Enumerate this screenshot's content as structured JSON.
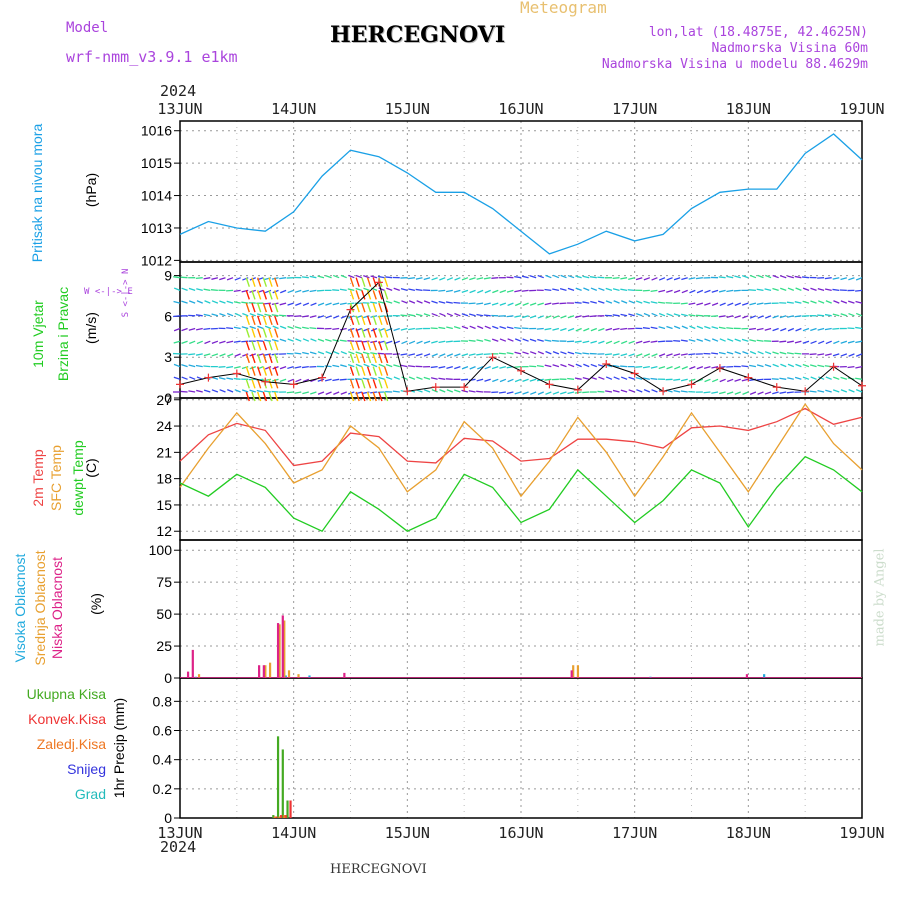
{
  "header": {
    "model_label": "Model",
    "model_name": "wrf-nmm_v3.9.1 e1km",
    "station": "HERCEGNOVI",
    "meteogram_label": "Meteogram",
    "coords": "lon,lat (18.4875E, 42.4625N)",
    "elevation": "Nadmorska Visina 60m",
    "model_elevation": "Nadmorska Visina u modelu 88.4629m",
    "year_top": "2024",
    "year_bottom": "2024",
    "footer_station": "HERCEGNOVI",
    "credit": "made by Angel"
  },
  "colors": {
    "pressure": "#1aa0e6",
    "temp2m": "#ee4444",
    "sfc_temp": "#e8a030",
    "dewpoint": "#22cc22",
    "high_cloud": "#22aadd",
    "mid_cloud": "#e8a030",
    "low_cloud": "#dd2288",
    "total_precip": "#44aa22",
    "conv_precip": "#ee3333",
    "frz_precip": "#ee7722",
    "snow": "#3333dd",
    "hail": "#22bbbb",
    "wind_label": "#22cc22",
    "compass": "#aa44dd",
    "meta": "#aa44dd",
    "meteogram": "#e8c070"
  },
  "panels": {
    "pressure": {
      "label1": "Pritisak na nivou mora",
      "unit": "(hPa)",
      "ticks": [
        "1016",
        "1015",
        "1014",
        "1013",
        "1012"
      ]
    },
    "wind": {
      "label1": "10m Vjetar",
      "label2": "Brzina i Pravac",
      "unit": "(m/s)",
      "ticks": [
        "9",
        "6",
        "3",
        "0"
      ],
      "compass": "W <-|-> E",
      "compass_v": "S <-|-> N"
    },
    "temp": {
      "label1": "2m Temp",
      "label2": "SFC Temp",
      "label3": "dewpt Temp",
      "unit": "(C)",
      "ticks": [
        "27",
        "24",
        "21",
        "18",
        "15",
        "12"
      ]
    },
    "cloud": {
      "label1": "Visoka Oblacnost",
      "label2": "Srednja Oblacnost",
      "label3": "Niska Oblacnost",
      "unit": "(%)",
      "ticks": [
        "100",
        "75",
        "50",
        "25",
        "0"
      ]
    },
    "precip": {
      "legend": [
        "Ukupna Kisa",
        "Konvek.Kisa",
        "Zaledj.Kisa",
        "Snijeg",
        "Grad"
      ],
      "unit": "1hr Precip (mm)",
      "ticks": [
        "0.8",
        "0.6",
        "0.4",
        "0.2",
        "0"
      ]
    }
  },
  "x_axis": {
    "dates": [
      "13JUN",
      "14JUN",
      "15JUN",
      "16JUN",
      "17JUN",
      "18JUN",
      "19JUN"
    ]
  },
  "chart_data": [
    {
      "type": "line",
      "name": "pressure",
      "x": [
        0,
        6,
        12,
        18,
        24,
        30,
        36,
        42,
        48,
        54,
        60,
        66,
        72,
        78,
        84,
        90,
        96,
        102,
        108,
        114,
        120,
        126,
        132,
        138,
        144
      ],
      "y_label": "(hPa)",
      "ylim": [
        1012,
        1016.3
      ],
      "series": [
        {
          "values": [
            1012.8,
            1013.2,
            1013.0,
            1012.9,
            1013.5,
            1014.6,
            1015.4,
            1015.2,
            1014.7,
            1014.1,
            1014.1,
            1013.6,
            1012.9,
            1012.2,
            1012.5,
            1012.9,
            1012.6,
            1012.8,
            1013.6,
            1014.1,
            1014.2,
            1014.2,
            1015.3,
            1015.9,
            1015.1
          ]
        }
      ]
    },
    {
      "type": "line",
      "name": "wind_speed",
      "x": [
        0,
        6,
        12,
        18,
        24,
        30,
        36,
        42,
        48,
        54,
        60,
        66,
        72,
        78,
        84,
        90,
        96,
        102,
        108,
        114,
        120,
        126,
        132,
        138,
        144
      ],
      "y_label": "(m/s)",
      "ylim": [
        0,
        10
      ],
      "series": [
        {
          "values": [
            1.0,
            1.5,
            1.8,
            1.2,
            1.0,
            1.5,
            6.5,
            8.5,
            0.5,
            0.8,
            0.8,
            3.0,
            2.0,
            1.0,
            0.6,
            2.5,
            1.8,
            0.5,
            1.0,
            2.2,
            1.5,
            0.8,
            0.5,
            2.3,
            0.9
          ]
        }
      ]
    },
    {
      "type": "line",
      "name": "temperature",
      "x": [
        0,
        6,
        12,
        18,
        24,
        30,
        36,
        42,
        48,
        54,
        60,
        66,
        72,
        78,
        84,
        90,
        96,
        102,
        108,
        114,
        120,
        126,
        132,
        138,
        144
      ],
      "y_label": "(C)",
      "ylim": [
        11,
        27
      ],
      "series": [
        {
          "name": "2m Temp",
          "values": [
            20.0,
            23.0,
            24.3,
            23.5,
            19.5,
            20.0,
            23.2,
            22.8,
            20.0,
            19.8,
            22.6,
            22.3,
            20.0,
            20.3,
            22.5,
            22.5,
            22.2,
            21.5,
            23.8,
            24.0,
            23.5,
            24.5,
            26.0,
            24.2,
            25.0
          ]
        },
        {
          "name": "SFC Temp",
          "values": [
            17.0,
            21.5,
            25.5,
            22.0,
            17.5,
            19.0,
            24.0,
            21.5,
            16.5,
            19.0,
            24.5,
            21.5,
            16.0,
            20.0,
            25.0,
            21.0,
            16.0,
            20.5,
            25.5,
            21.0,
            16.5,
            21.5,
            26.5,
            22.0,
            19.0
          ]
        },
        {
          "name": "dewpt Temp",
          "values": [
            17.5,
            16.0,
            18.5,
            17.0,
            13.5,
            12.0,
            16.5,
            14.5,
            12.0,
            13.5,
            18.5,
            17.0,
            13.0,
            14.5,
            19.0,
            16.0,
            13.0,
            15.5,
            19.0,
            17.5,
            12.5,
            17.0,
            20.5,
            19.0,
            16.5
          ]
        }
      ]
    },
    {
      "type": "bar",
      "name": "cloud_cover",
      "ylim": [
        0,
        105
      ],
      "y_label": "(%)",
      "series": [
        {
          "name": "Visoka Oblacnost",
          "hours": [
            3,
            22,
            27,
            99,
            123
          ],
          "values": [
            1,
            2,
            2,
            1,
            3
          ]
        },
        {
          "name": "Srednja Oblacnost",
          "hours": [
            4,
            18,
            19,
            21,
            22,
            23,
            25,
            83,
            84
          ],
          "values": [
            3,
            10,
            12,
            42,
            45,
            6,
            3,
            10,
            10
          ]
        },
        {
          "name": "Niska Oblacnost",
          "hours": [
            2,
            3,
            17,
            18,
            21,
            22,
            35,
            83,
            120
          ],
          "values": [
            5,
            22,
            10,
            10,
            43,
            49,
            4,
            6,
            3
          ]
        }
      ]
    },
    {
      "type": "bar",
      "name": "precipitation",
      "ylim": [
        0,
        0.95
      ],
      "y_label": "1hr Precip (mm)",
      "series": [
        {
          "name": "Ukupna Kisa",
          "hours": [
            20,
            21,
            22,
            23
          ],
          "values": [
            0.02,
            0.56,
            0.47,
            0.12
          ]
        },
        {
          "name": "Konvek.Kisa",
          "hours": [
            20,
            21,
            22,
            23
          ],
          "values": [
            0.01,
            0.02,
            0.02,
            0.12
          ]
        },
        {
          "name": "Zaledj.Kisa",
          "hours": [
            20,
            21,
            22
          ],
          "values": [
            0.01,
            0.01,
            0.02
          ]
        }
      ]
    }
  ]
}
